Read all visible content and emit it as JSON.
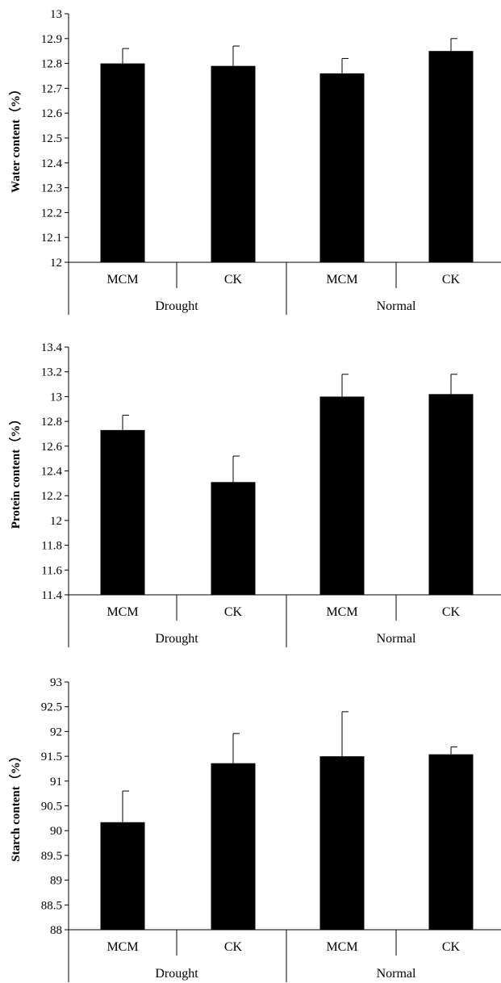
{
  "chart_data": [
    {
      "type": "bar",
      "ylabel": "Water content（%）",
      "ylim": [
        12,
        13
      ],
      "yticks": [
        "12",
        "12.1",
        "12.2",
        "12.3",
        "12.4",
        "12.5",
        "12.6",
        "12.7",
        "12.8",
        "12.9",
        "13"
      ],
      "categories": [
        "MCM",
        "CK",
        "MCM",
        "CK"
      ],
      "groups": [
        "Drought",
        "Normal"
      ],
      "values": [
        12.8,
        12.79,
        12.76,
        12.85
      ],
      "error": [
        0.06,
        0.08,
        0.06,
        0.05
      ],
      "bar_color": "#000000",
      "grid": false
    },
    {
      "type": "bar",
      "ylabel": "Protein content（%）",
      "ylim": [
        11.4,
        13.4
      ],
      "yticks": [
        "11.4",
        "11.6",
        "11.8",
        "12",
        "12.2",
        "12.4",
        "12.6",
        "12.8",
        "13",
        "13.2",
        "13.4"
      ],
      "categories": [
        "MCM",
        "CK",
        "MCM",
        "CK"
      ],
      "groups": [
        "Drought",
        "Normal"
      ],
      "values": [
        12.73,
        12.31,
        13.0,
        13.02
      ],
      "error": [
        0.12,
        0.21,
        0.18,
        0.16
      ],
      "bar_color": "#000000",
      "grid": false
    },
    {
      "type": "bar",
      "ylabel": "Starch content（%）",
      "ylim": [
        88,
        93
      ],
      "yticks": [
        "88",
        "88.5",
        "89",
        "89.5",
        "90",
        "90.5",
        "91",
        "91.5",
        "92",
        "92.5",
        "93"
      ],
      "categories": [
        "MCM",
        "CK",
        "MCM",
        "CK"
      ],
      "groups": [
        "Drought",
        "Normal"
      ],
      "values": [
        90.17,
        91.36,
        91.5,
        91.54
      ],
      "error": [
        0.63,
        0.6,
        0.9,
        0.15
      ],
      "bar_color": "#000000",
      "grid": false
    }
  ]
}
